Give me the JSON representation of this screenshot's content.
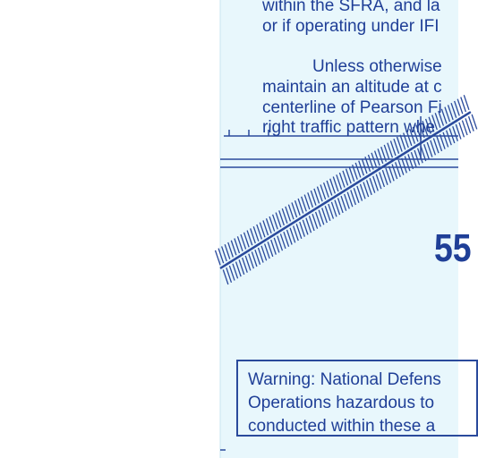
{
  "colors": {
    "chart_background": "#e8f7fc",
    "ink": "#1f3f97",
    "page": "#ffffff"
  },
  "top_text": {
    "line1": "within the SFRA, and la",
    "line2": "or if operating under IFI"
  },
  "para_text": {
    "line1": "Unless otherwise",
    "line2": "maintain an altitude at c",
    "line3": "centerline of Pearson Fi",
    "line4": "right traffic pattern whe"
  },
  "runway_number": "55",
  "warning": {
    "line1": "Warning: National Defens",
    "line2": "Operations hazardous to",
    "line3": "conducted within these a"
  }
}
